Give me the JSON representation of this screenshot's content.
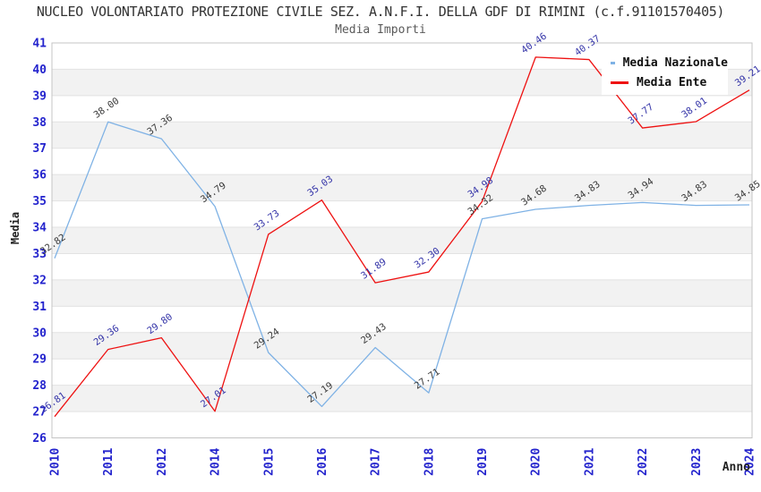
{
  "chart_data": {
    "type": "line",
    "title": "NUCLEO VOLONTARIATO PROTEZIONE CIVILE SEZ. A.N.F.I. DELLA GDF DI RIMINI (c.f.91101570405)",
    "subtitle": "Media Importi",
    "xlabel": "Anno",
    "ylabel": "Media",
    "ylim": [
      26,
      41
    ],
    "y_tick_step": 1,
    "grid": true,
    "legend_position": "top-right",
    "categories": [
      "2010",
      "2011",
      "2012",
      "2014",
      "2015",
      "2016",
      "2017",
      "2018",
      "2019",
      "2020",
      "2021",
      "2022",
      "2023",
      "2024"
    ],
    "series": [
      {
        "name": "Media Nazionale",
        "color": "#7FB2E5",
        "label_color": "#3a3a3a",
        "values": [
          32.82,
          38.0,
          37.36,
          34.79,
          29.24,
          27.19,
          29.43,
          27.71,
          34.32,
          34.68,
          34.83,
          34.94,
          34.83,
          34.85
        ]
      },
      {
        "name": "Media Ente",
        "color": "#EE1111",
        "label_color": "#3434a8",
        "values": [
          26.81,
          29.36,
          29.8,
          27.01,
          33.73,
          35.03,
          31.89,
          32.3,
          34.98,
          40.46,
          40.37,
          37.77,
          38.01,
          39.21
        ]
      }
    ],
    "styles": {
      "tick_color": "#2323CD",
      "band_color": "#F2F2F2",
      "grid_color": "#E2E2E2",
      "border_color": "#C4C4C4"
    }
  }
}
